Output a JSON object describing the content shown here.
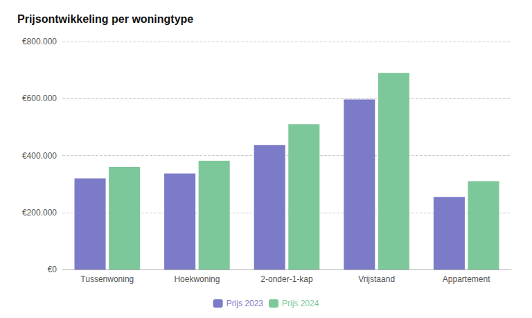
{
  "chart_data": {
    "type": "bar",
    "title": "Prijsontwikkeling per woningtype",
    "categories": [
      "Tussenwoning",
      "Hoekwoning",
      "2-onder-1-kap",
      "Vrijstaand",
      "Appartement"
    ],
    "series": [
      {
        "name": "Prijs 2023",
        "color": "#7B7BC8",
        "values": [
          320000,
          337000,
          437000,
          597000,
          255000
        ]
      },
      {
        "name": "Prijs 2024",
        "color": "#7DC89A",
        "values": [
          360000,
          382000,
          510000,
          690000,
          310000
        ]
      }
    ],
    "ylim": [
      0,
      800000
    ],
    "yticks": [
      {
        "value": 0,
        "label": "€0"
      },
      {
        "value": 200000,
        "label": "€200.000"
      },
      {
        "value": 400000,
        "label": "€400.000"
      },
      {
        "value": 600000,
        "label": "€600.000"
      },
      {
        "value": 800000,
        "label": "€800.000"
      }
    ],
    "grid": true,
    "legend": "bottom"
  }
}
